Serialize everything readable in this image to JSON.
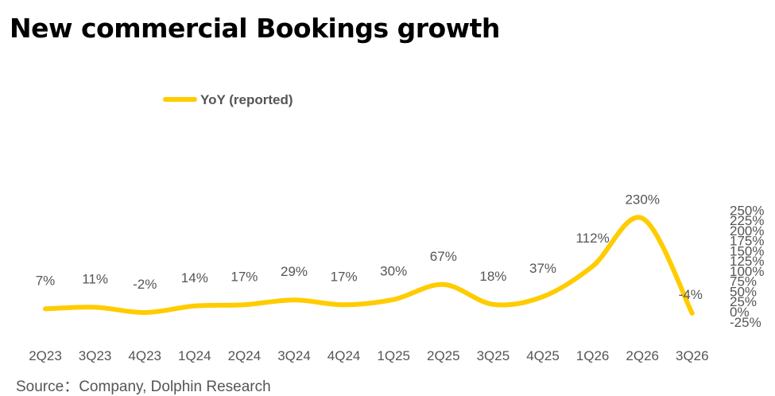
{
  "title": "New commercial Bookings growth",
  "source": "Source：Company, Dolphin Research",
  "chart_data": {
    "type": "line",
    "categories": [
      "2Q23",
      "3Q23",
      "4Q23",
      "1Q24",
      "2Q24",
      "3Q24",
      "4Q24",
      "1Q25",
      "2Q25",
      "3Q25",
      "4Q25",
      "1Q26",
      "2Q26",
      "3Q26"
    ],
    "series": [
      {
        "name": "YoY  (reported)",
        "values": [
          7,
          11,
          -2,
          14,
          17,
          29,
          17,
          30,
          67,
          18,
          37,
          112,
          230,
          -4
        ],
        "labels": [
          "7%",
          "11%",
          "-2%",
          "14%",
          "17%",
          "29%",
          "17%",
          "30%",
          "67%",
          "18%",
          "37%",
          "112%",
          "230%",
          "-4%"
        ],
        "color": "#FFCC00"
      }
    ],
    "y_ticks": [
      "-25%",
      "0%",
      "25%",
      "50%",
      "75%",
      "100%",
      "125%",
      "150%",
      "175%",
      "200%",
      "225%",
      "250%"
    ],
    "ylim": [
      -25,
      250
    ],
    "y_axis_side": "right",
    "grid": false,
    "legend_position": "top-left"
  }
}
